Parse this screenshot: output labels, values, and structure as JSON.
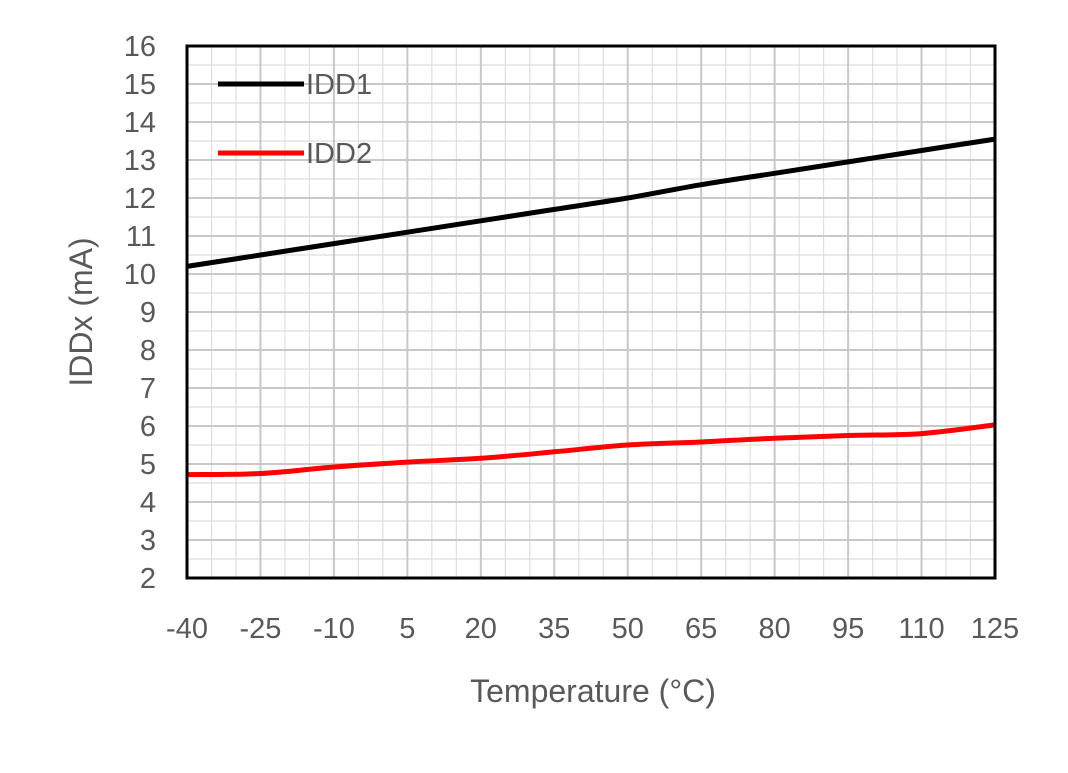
{
  "chart_data": {
    "type": "line",
    "title": "",
    "xlabel": "Temperature (°C)",
    "ylabel": "IDDx (mA)",
    "x": [
      -40,
      -25,
      -10,
      5,
      20,
      35,
      50,
      65,
      80,
      95,
      110,
      125
    ],
    "x_tick_labels": [
      "-40",
      "-25",
      "-10",
      "5",
      "20",
      "35",
      "50",
      "65",
      "80",
      "95",
      "110",
      "125"
    ],
    "xlim": [
      -40,
      125
    ],
    "ylim": [
      2,
      16
    ],
    "y_ticks": [
      2,
      3,
      4,
      5,
      6,
      7,
      8,
      9,
      10,
      11,
      12,
      13,
      14,
      15,
      16
    ],
    "grid": true,
    "minor_grid": true,
    "legend": "top-left",
    "series": [
      {
        "name": "IDD1",
        "color": "#000000",
        "values": [
          10.2,
          10.5,
          10.8,
          11.1,
          11.4,
          11.7,
          12.0,
          12.35,
          12.65,
          12.95,
          13.25,
          13.55
        ]
      },
      {
        "name": "IDD2",
        "color": "#ff0000",
        "values": [
          4.72,
          4.75,
          4.92,
          5.05,
          5.15,
          5.32,
          5.5,
          5.58,
          5.68,
          5.75,
          5.8,
          6.03
        ]
      }
    ]
  }
}
